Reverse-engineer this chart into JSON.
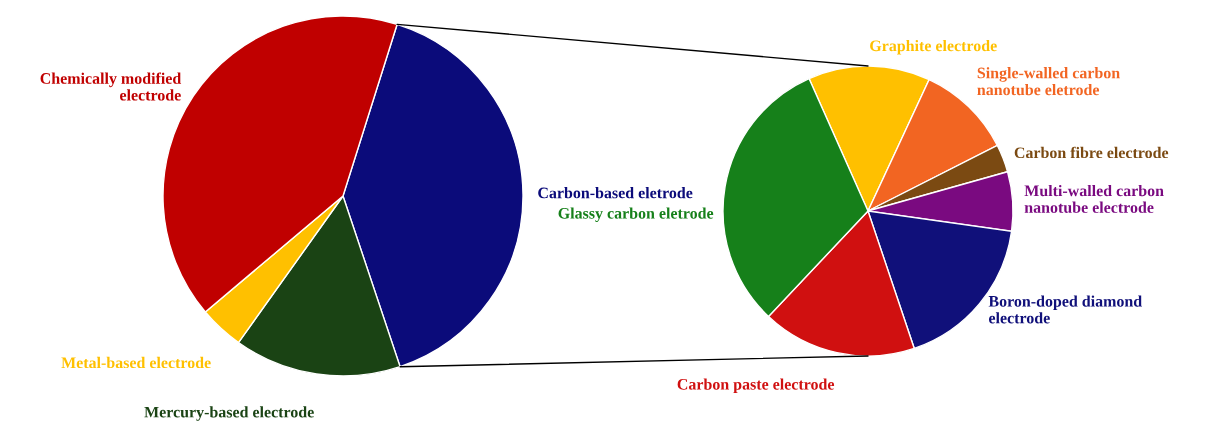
{
  "chart_data": [
    {
      "type": "pie",
      "categories": [
        "Carbon-based eletrode",
        "Mercury-based electrode",
        "Metal-based electrode",
        "Chemically modified\nelectrode"
      ],
      "values": [
        40,
        15,
        4,
        41
      ],
      "colors": [
        "#0b0b7a",
        "#1a4314",
        "#ffc000",
        "#c00000"
      ]
    },
    {
      "type": "pie",
      "categories": [
        "Graphite electrode",
        "Single-walled carbon\nnanotube eletrode",
        "Carbon fibre electrode",
        "Multi-walled carbon\nnanotube electrode",
        "Boron-doped diamond\nelectrode",
        "Carbon paste electrode",
        "Glassy carbon eletrode"
      ],
      "values": [
        13.6,
        10.6,
        3.1,
        6.6,
        17.6,
        17.2,
        31.3
      ],
      "colors": [
        "#ffc000",
        "#f26522",
        "#7b4a12",
        "#7a0a80",
        "#10107a",
        "#d01010",
        "#16801a"
      ]
    }
  ]
}
